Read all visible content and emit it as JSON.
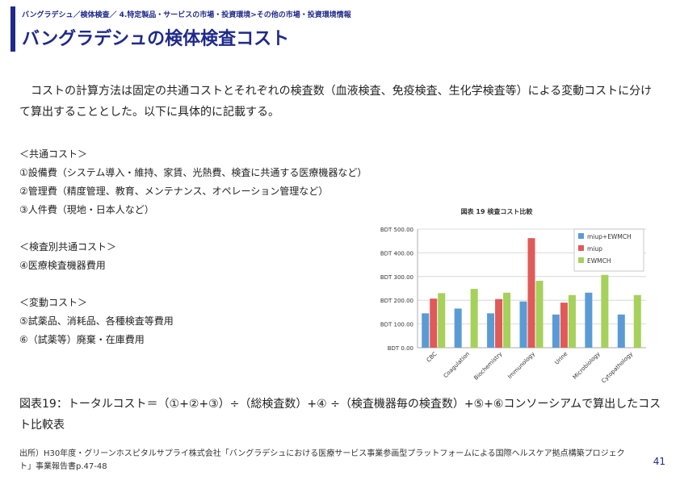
{
  "header": {
    "breadcrumb": "バングラデシュ／検体検査／ 4.特定製品・サービスの市場・投資環境>その他の市場・投資環境情報",
    "title": "バングラデシュの検体検査コスト"
  },
  "intro": "コストの計算方法は固定の共通コストとそれぞれの検査数（血液検査、免疫検査、生化学検査等）による変動コストに分けて算出することとした。以下に具体的に記載する。",
  "lists": {
    "common_header": "＜共通コスト＞",
    "common_items": [
      "①設備費（システム導入・維持、家賃、光熱費、検査に共通する医療機器など）",
      "②管理費（精度管理、教育、メンテナンス、オペレーション管理など）",
      "③人件費（現地・日本人など）"
    ],
    "per_test_header": "＜検査別共通コスト＞",
    "per_test_items": [
      "④医療検査機器費用"
    ],
    "variable_header": "＜変動コスト＞",
    "variable_items": [
      "⑤試薬品、消耗品、各種検査等費用",
      "⑥（試薬等）廃棄・在庫費用"
    ]
  },
  "caption": "図表19：トータルコスト＝（①+②+③）÷（総検査数）+④ ÷（検査機器毎の検査数）+⑤+⑥コンソーシアムで算出したコスト比較表",
  "source": "出所）H30年度・グリーンホスピタルサプライ株式会社「バングラデシュにおける医療サービス事業参画型プラットフォームによる国際ヘルスケア拠点構築プロジェクト」事業報告書p.47-48",
  "page_number": "41",
  "chart_data": {
    "type": "bar",
    "title": "図表 19 検査コスト比較",
    "categories": [
      "CBC",
      "Coagulation",
      "Biochemistry",
      "Immunology",
      "Urine",
      "Microbiology",
      "Cytopathology"
    ],
    "series": [
      {
        "name": "miup+EWMCH",
        "color": "#5b9bd5",
        "values": [
          145,
          165,
          145,
          195,
          140,
          232,
          140
        ]
      },
      {
        "name": "miup",
        "color": "#e05a5a",
        "values": [
          207,
          null,
          205,
          462,
          190,
          null,
          null
        ]
      },
      {
        "name": "EWMCH",
        "color": "#a6d15a",
        "values": [
          230,
          248,
          232,
          282,
          222,
          307,
          222
        ]
      }
    ],
    "yticks": [
      "BDT 0.00",
      "BDT 100.00",
      "BDT 200.00",
      "BDT 300.00",
      "BDT 400.00",
      "BDT 500.00"
    ],
    "ylim": [
      0,
      500
    ],
    "grid": true,
    "legend": "top-right"
  }
}
